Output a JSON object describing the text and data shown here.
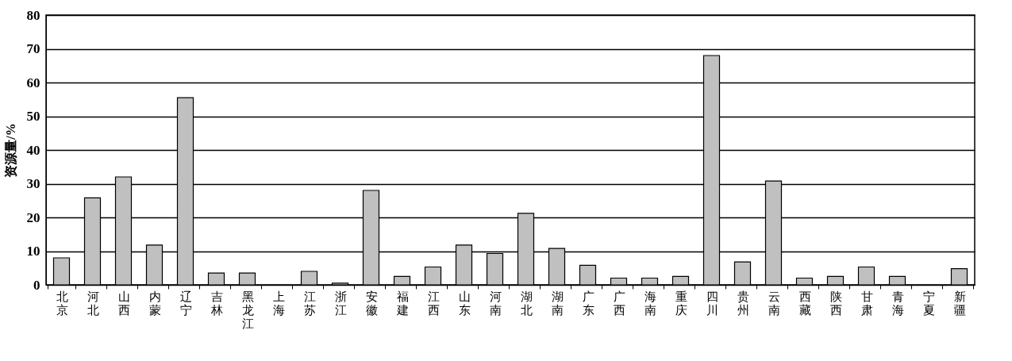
{
  "chart_data": {
    "type": "bar",
    "ylabel": "资源量/%",
    "categories": [
      "北京",
      "河北",
      "山西",
      "内蒙",
      "辽宁",
      "吉林",
      "黑龙江",
      "上海",
      "江苏",
      "浙江",
      "安徽",
      "福建",
      "江西",
      "山东",
      "河南",
      "湖北",
      "湖南",
      "广东",
      "广西",
      "海南",
      "重庆",
      "四川",
      "贵州",
      "云南",
      "西藏",
      "陕西",
      "甘肃",
      "青海",
      "宁夏",
      "新疆"
    ],
    "values": [
      8,
      25.8,
      32,
      11.8,
      55.5,
      3.5,
      3.5,
      0,
      4,
      0.5,
      28,
      2.5,
      5.3,
      11.8,
      9.3,
      21.2,
      10.8,
      5.8,
      2,
      2,
      2.5,
      68,
      6.8,
      30.8,
      2,
      2.5,
      5.3,
      2.5,
      0,
      4.8
    ],
    "color": "#c0c0c0",
    "ylim": [
      0,
      80
    ],
    "yticks": [
      0,
      10,
      20,
      30,
      40,
      50,
      60,
      70,
      80
    ],
    "grid": "y"
  }
}
